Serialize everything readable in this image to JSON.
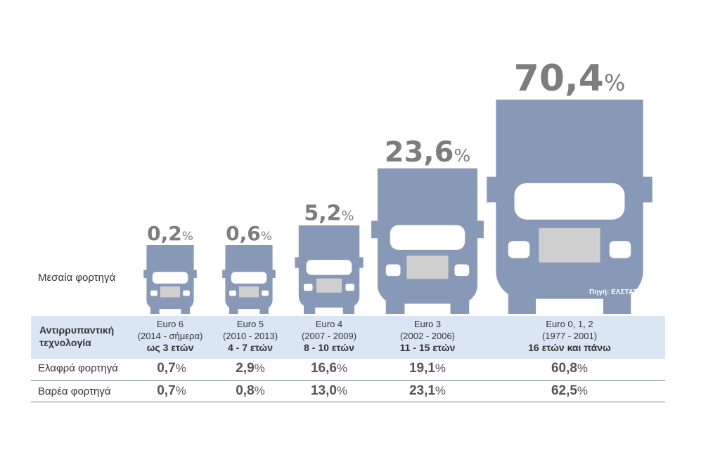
{
  "chart_data": {
    "type": "bar",
    "series_label": "Μεσαία φορτηγά",
    "categories": [
      "Euro 6",
      "Euro 5",
      "Euro 4",
      "Euro 3",
      "Euro 0, 1, 2"
    ],
    "values": [
      0.2,
      0.6,
      5.2,
      23.6,
      70.4
    ],
    "value_labels": [
      "0,2",
      "0,6",
      "5,2",
      "23,6",
      "70,4"
    ],
    "percent_symbol": "%",
    "source": "Πηγή: ΕΛΣΤΑΤ",
    "table": {
      "header": "Αντιρρυπαντική τεχνολογία",
      "header_line1": "Αντιρρυπαντική",
      "header_line2": "τεχνολογία",
      "columns": [
        {
          "name": "Euro 6",
          "period": "(2014 - σήμερα)",
          "age": "ως 3 ετών"
        },
        {
          "name": "Euro 5",
          "period": "(2010 - 2013)",
          "age": "4 - 7 ετών"
        },
        {
          "name": "Euro 4",
          "period": "(2007 - 2009)",
          "age": "8 - 10 ετών"
        },
        {
          "name": "Euro 3",
          "period": "(2002 - 2006)",
          "age": "11 - 15 ετών"
        },
        {
          "name": "Euro 0, 1, 2",
          "period": "(1977 - 2001)",
          "age": "16 ετών και πάνω"
        }
      ],
      "rows": [
        {
          "label": "Ελαφρά φορτηγά",
          "values": [
            "0,7",
            "2,9",
            "16,6",
            "19,1",
            "60,8"
          ]
        },
        {
          "label": "Βαρέα φορτηγά",
          "values": [
            "0,7",
            "0,8",
            "13,0",
            "23,1",
            "62,5"
          ]
        }
      ]
    }
  },
  "colors": {
    "truck": "#8799b7",
    "truck_detail": "#ffffff",
    "grille": "#cfcfcf",
    "band": "#dbe6f5",
    "rule": "#6a7fa0"
  }
}
